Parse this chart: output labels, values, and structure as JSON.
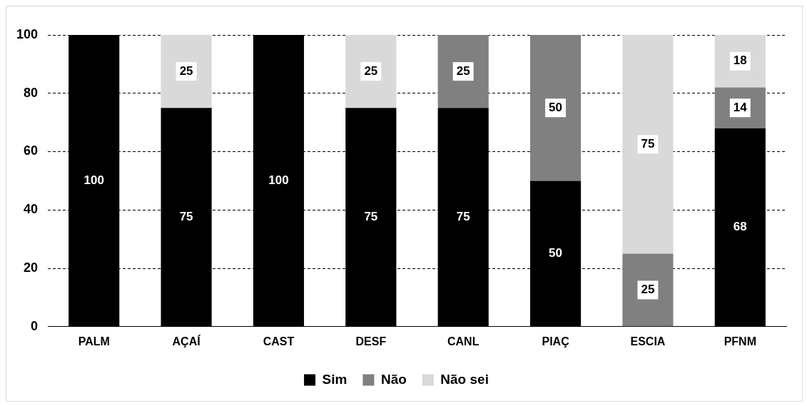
{
  "chart_data": {
    "type": "bar",
    "stacked": true,
    "categories": [
      "PALM",
      "AÇAÍ",
      "CAST",
      "DESF",
      "CANL",
      "PIAÇ",
      "ESCIA",
      "PFNM"
    ],
    "series": [
      {
        "name": "Sim",
        "color": "#000000",
        "values": [
          100,
          75,
          100,
          75,
          75,
          50,
          null,
          68
        ]
      },
      {
        "name": "Não",
        "color": "#808080",
        "values": [
          null,
          null,
          null,
          null,
          25,
          50,
          25,
          14
        ]
      },
      {
        "name": "Não sei",
        "color": "#d9d9d9",
        "values": [
          null,
          25,
          null,
          25,
          null,
          null,
          75,
          18
        ]
      }
    ],
    "ylim": [
      0,
      100
    ],
    "yticks": [
      0,
      20,
      40,
      60,
      80,
      100
    ],
    "grid": "y",
    "line_style": "dashed",
    "legend": "bottom",
    "data_labels": true
  }
}
